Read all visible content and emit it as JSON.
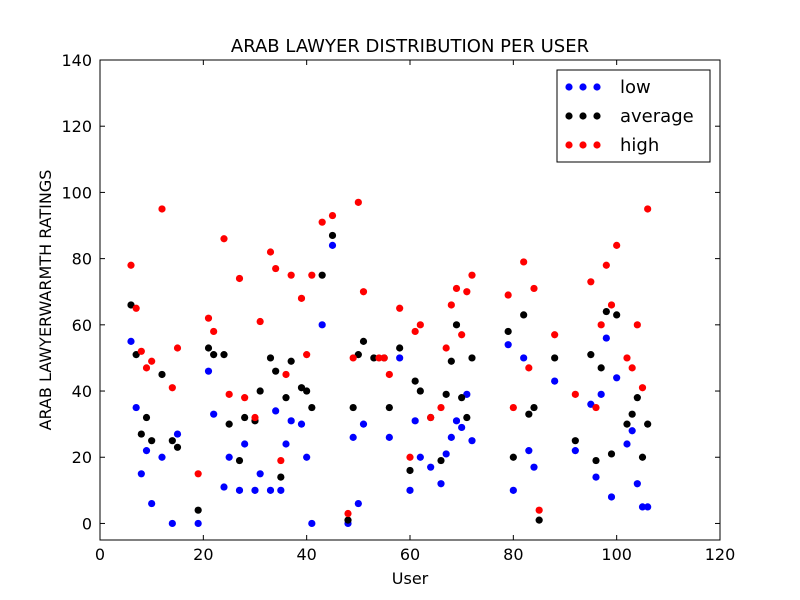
{
  "chart_data": {
    "type": "scatter",
    "title": "ARAB LAWYER DISTRIBUTION PER USER",
    "xlabel": "User",
    "ylabel": "ARAB LAWYERWARMTH RATINGS",
    "xlim": [
      0,
      120
    ],
    "ylim": [
      -5,
      140
    ],
    "xticks": [
      0,
      20,
      40,
      60,
      80,
      100,
      120
    ],
    "yticks": [
      0,
      20,
      40,
      60,
      80,
      100,
      120,
      140
    ],
    "grid": false,
    "legend_position": "top-right",
    "series": [
      {
        "name": "low",
        "color": "#0000ff",
        "points": [
          [
            6,
            55
          ],
          [
            7,
            35
          ],
          [
            8,
            15
          ],
          [
            9,
            22
          ],
          [
            10,
            6
          ],
          [
            12,
            20
          ],
          [
            14,
            0
          ],
          [
            15,
            27
          ],
          [
            19,
            0
          ],
          [
            21,
            46
          ],
          [
            22,
            33
          ],
          [
            24,
            11
          ],
          [
            25,
            20
          ],
          [
            27,
            10
          ],
          [
            28,
            24
          ],
          [
            30,
            10
          ],
          [
            31,
            15
          ],
          [
            33,
            10
          ],
          [
            34,
            34
          ],
          [
            35,
            10
          ],
          [
            36,
            24
          ],
          [
            37,
            31
          ],
          [
            39,
            30
          ],
          [
            40,
            20
          ],
          [
            41,
            0
          ],
          [
            43,
            60
          ],
          [
            45,
            84
          ],
          [
            48,
            0
          ],
          [
            49,
            26
          ],
          [
            50,
            6
          ],
          [
            51,
            30
          ],
          [
            56,
            26
          ],
          [
            58,
            50
          ],
          [
            60,
            10
          ],
          [
            61,
            31
          ],
          [
            62,
            20
          ],
          [
            64,
            17
          ],
          [
            66,
            12
          ],
          [
            67,
            21
          ],
          [
            68,
            26
          ],
          [
            69,
            31
          ],
          [
            70,
            29
          ],
          [
            71,
            39
          ],
          [
            72,
            25
          ],
          [
            79,
            54
          ],
          [
            80,
            10
          ],
          [
            82,
            50
          ],
          [
            83,
            22
          ],
          [
            84,
            17
          ],
          [
            88,
            43
          ],
          [
            92,
            22
          ],
          [
            95,
            36
          ],
          [
            96,
            14
          ],
          [
            97,
            39
          ],
          [
            98,
            56
          ],
          [
            99,
            8
          ],
          [
            100,
            44
          ],
          [
            102,
            24
          ],
          [
            103,
            28
          ],
          [
            104,
            12
          ],
          [
            105,
            5
          ],
          [
            106,
            5
          ]
        ]
      },
      {
        "name": "average",
        "color": "#000000",
        "points": [
          [
            6,
            66
          ],
          [
            7,
            51
          ],
          [
            8,
            27
          ],
          [
            9,
            32
          ],
          [
            10,
            25
          ],
          [
            12,
            45
          ],
          [
            14,
            25
          ],
          [
            15,
            23
          ],
          [
            19,
            4
          ],
          [
            21,
            53
          ],
          [
            22,
            51
          ],
          [
            24,
            51
          ],
          [
            25,
            30
          ],
          [
            27,
            19
          ],
          [
            28,
            32
          ],
          [
            30,
            31
          ],
          [
            31,
            40
          ],
          [
            33,
            50
          ],
          [
            34,
            46
          ],
          [
            35,
            14
          ],
          [
            36,
            38
          ],
          [
            37,
            49
          ],
          [
            39,
            41
          ],
          [
            40,
            40
          ],
          [
            41,
            35
          ],
          [
            43,
            75
          ],
          [
            45,
            87
          ],
          [
            48,
            1
          ],
          [
            49,
            35
          ],
          [
            50,
            51
          ],
          [
            51,
            55
          ],
          [
            53,
            50
          ],
          [
            55,
            50
          ],
          [
            56,
            35
          ],
          [
            58,
            53
          ],
          [
            60,
            16
          ],
          [
            61,
            43
          ],
          [
            62,
            40
          ],
          [
            64,
            32
          ],
          [
            66,
            19
          ],
          [
            67,
            39
          ],
          [
            68,
            49
          ],
          [
            69,
            60
          ],
          [
            70,
            38
          ],
          [
            71,
            32
          ],
          [
            72,
            50
          ],
          [
            79,
            58
          ],
          [
            80,
            20
          ],
          [
            82,
            63
          ],
          [
            83,
            33
          ],
          [
            84,
            35
          ],
          [
            85,
            1
          ],
          [
            88,
            50
          ],
          [
            92,
            25
          ],
          [
            95,
            51
          ],
          [
            96,
            19
          ],
          [
            97,
            47
          ],
          [
            98,
            64
          ],
          [
            99,
            21
          ],
          [
            100,
            63
          ],
          [
            102,
            30
          ],
          [
            103,
            33
          ],
          [
            104,
            38
          ],
          [
            105,
            20
          ],
          [
            106,
            30
          ]
        ]
      },
      {
        "name": "high",
        "color": "#ff0000",
        "points": [
          [
            6,
            78
          ],
          [
            7,
            65
          ],
          [
            8,
            52
          ],
          [
            9,
            47
          ],
          [
            10,
            49
          ],
          [
            12,
            95
          ],
          [
            14,
            41
          ],
          [
            15,
            53
          ],
          [
            19,
            15
          ],
          [
            21,
            62
          ],
          [
            22,
            58
          ],
          [
            24,
            86
          ],
          [
            25,
            39
          ],
          [
            27,
            74
          ],
          [
            28,
            38
          ],
          [
            30,
            32
          ],
          [
            31,
            61
          ],
          [
            33,
            82
          ],
          [
            34,
            77
          ],
          [
            35,
            19
          ],
          [
            36,
            45
          ],
          [
            37,
            75
          ],
          [
            39,
            68
          ],
          [
            40,
            51
          ],
          [
            41,
            75
          ],
          [
            43,
            91
          ],
          [
            45,
            93
          ],
          [
            48,
            3
          ],
          [
            49,
            50
          ],
          [
            50,
            97
          ],
          [
            51,
            70
          ],
          [
            54,
            50
          ],
          [
            55,
            50
          ],
          [
            56,
            45
          ],
          [
            58,
            65
          ],
          [
            60,
            20
          ],
          [
            61,
            58
          ],
          [
            62,
            60
          ],
          [
            64,
            32
          ],
          [
            66,
            35
          ],
          [
            67,
            53
          ],
          [
            68,
            66
          ],
          [
            69,
            71
          ],
          [
            70,
            57
          ],
          [
            71,
            70
          ],
          [
            72,
            75
          ],
          [
            79,
            69
          ],
          [
            80,
            35
          ],
          [
            82,
            79
          ],
          [
            83,
            47
          ],
          [
            84,
            71
          ],
          [
            85,
            4
          ],
          [
            88,
            57
          ],
          [
            92,
            39
          ],
          [
            95,
            73
          ],
          [
            96,
            35
          ],
          [
            97,
            60
          ],
          [
            98,
            78
          ],
          [
            99,
            66
          ],
          [
            100,
            84
          ],
          [
            102,
            50
          ],
          [
            103,
            47
          ],
          [
            104,
            60
          ],
          [
            105,
            41
          ],
          [
            106,
            95
          ]
        ]
      }
    ]
  }
}
